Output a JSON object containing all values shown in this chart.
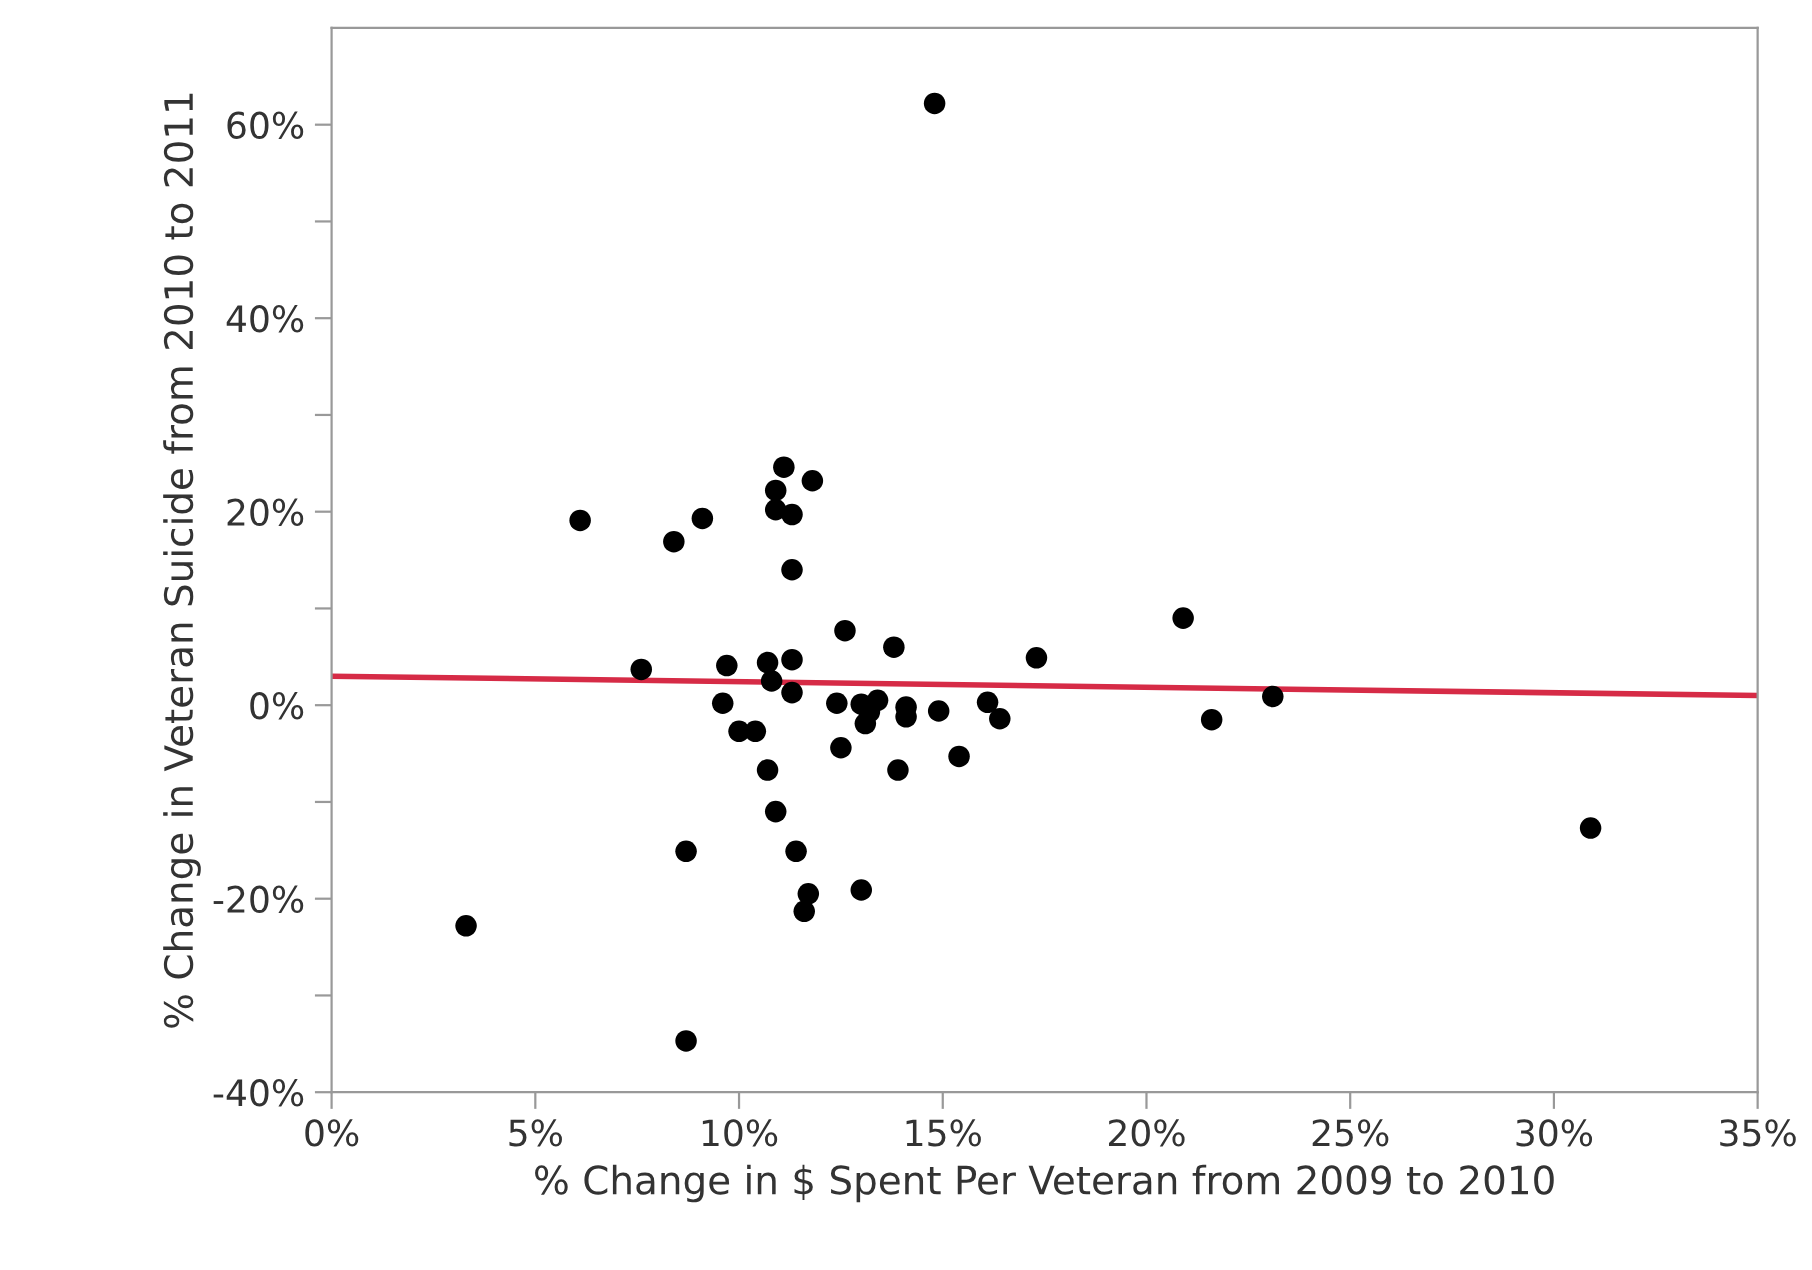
{
  "chart_data": {
    "type": "scatter",
    "xlabel": "% Change in $ Spent Per Veteran from 2009 to 2010",
    "ylabel": "% Change in Veteran Suicide from 2010 to 2011",
    "xlim": [
      0,
      35
    ],
    "ylim": [
      -40,
      70
    ],
    "xticks": [
      {
        "value": 0,
        "label": "0%"
      },
      {
        "value": 5,
        "label": "5%"
      },
      {
        "value": 10,
        "label": "10%"
      },
      {
        "value": 15,
        "label": "15%"
      },
      {
        "value": 20,
        "label": "20%"
      },
      {
        "value": 25,
        "label": "25%"
      },
      {
        "value": 30,
        "label": "30%"
      },
      {
        "value": 35,
        "label": "35%"
      }
    ],
    "yticks": [
      {
        "value": -40,
        "label": "-40%"
      },
      {
        "value": -30,
        "label": null
      },
      {
        "value": -20,
        "label": "-20%"
      },
      {
        "value": -10,
        "label": null
      },
      {
        "value": 0,
        "label": "0%"
      },
      {
        "value": 10,
        "label": null
      },
      {
        "value": 20,
        "label": "20%"
      },
      {
        "value": 30,
        "label": null
      },
      {
        "value": 40,
        "label": "40%"
      },
      {
        "value": 50,
        "label": null
      },
      {
        "value": 60,
        "label": "60%"
      }
    ],
    "grid": false,
    "legend": false,
    "series": [
      {
        "marker": "circle",
        "color": "#000000",
        "x": [
          14.8,
          11.1,
          11.8,
          10.9,
          10.9,
          11.3,
          6.1,
          9.1,
          8.4,
          11.3,
          12.6,
          13.8,
          20.9,
          17.3,
          7.6,
          9.7,
          10.7,
          11.3,
          10.8,
          11.3,
          9.6,
          10.0,
          10.4,
          12.4,
          13.0,
          13.4,
          13.2,
          13.1,
          14.1,
          14.1,
          14.9,
          16.1,
          16.4,
          23.1,
          21.6,
          12.5,
          13.9,
          15.4,
          10.7,
          10.9,
          8.7,
          11.4,
          13.0,
          11.7,
          11.6,
          3.3,
          8.7,
          30.9
        ],
        "values": [
          62.2,
          24.6,
          23.2,
          22.2,
          20.2,
          19.7,
          19.1,
          19.3,
          16.9,
          14.0,
          7.7,
          6.0,
          9.0,
          4.9,
          3.7,
          4.1,
          4.4,
          4.7,
          2.5,
          1.3,
          0.2,
          -2.7,
          -2.7,
          0.2,
          0.1,
          0.5,
          -0.7,
          -1.9,
          -0.2,
          -1.2,
          -0.6,
          0.3,
          -1.4,
          0.9,
          -1.5,
          -4.4,
          -6.7,
          -5.3,
          -6.7,
          -11.0,
          -15.1,
          -15.1,
          -19.1,
          -19.5,
          -21.3,
          -22.8,
          -34.7,
          -12.7
        ]
      },
      {
        "type": "line",
        "color": "#d62b46",
        "x": [
          0,
          35
        ],
        "values": [
          3.0,
          1.0
        ]
      }
    ]
  }
}
